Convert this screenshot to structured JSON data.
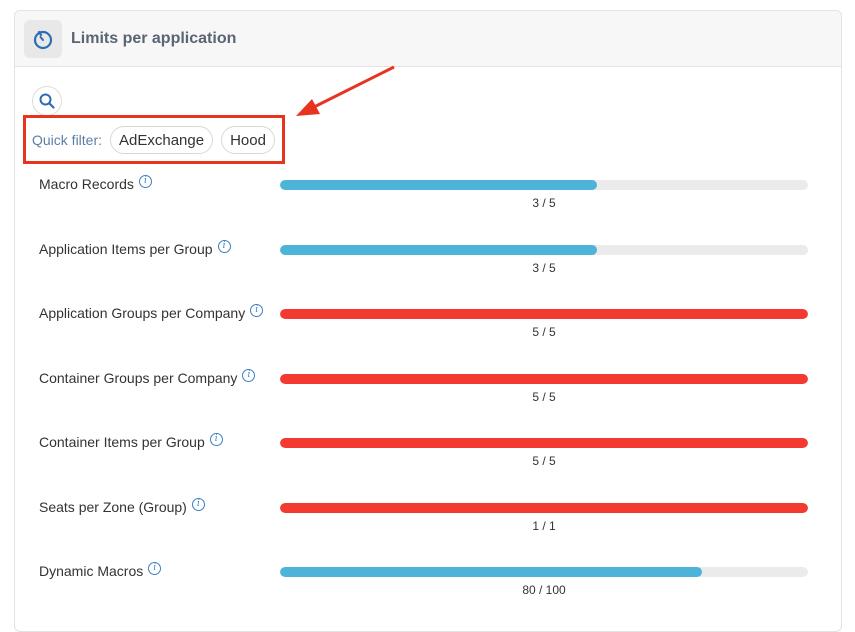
{
  "card": {
    "title": "Limits per application"
  },
  "icons": {
    "header": "timer-icon",
    "search": "search-icon",
    "info": "info-icon"
  },
  "quick_filter": {
    "label": "Quick filter:",
    "chips": [
      "AdExchange",
      "Hood"
    ]
  },
  "colors": {
    "normal": "#4db3d8",
    "full": "#f23a30",
    "track": "#ebebeb",
    "highlight": "#e8331f"
  },
  "limits": [
    {
      "label": "Macro Records",
      "used": 3,
      "max": 5,
      "value_text": "3 / 5"
    },
    {
      "label": "Application Items per Group",
      "used": 3,
      "max": 5,
      "value_text": "3 / 5"
    },
    {
      "label": "Application Groups per Company",
      "used": 5,
      "max": 5,
      "value_text": "5 / 5"
    },
    {
      "label": "Container Groups per Company",
      "used": 5,
      "max": 5,
      "value_text": "5 / 5"
    },
    {
      "label": "Container Items per Group",
      "used": 5,
      "max": 5,
      "value_text": "5 / 5"
    },
    {
      "label": "Seats per Zone (Group)",
      "used": 1,
      "max": 1,
      "value_text": "1 / 1"
    },
    {
      "label": "Dynamic Macros",
      "used": 80,
      "max": 100,
      "value_text": "80 / 100"
    }
  ]
}
